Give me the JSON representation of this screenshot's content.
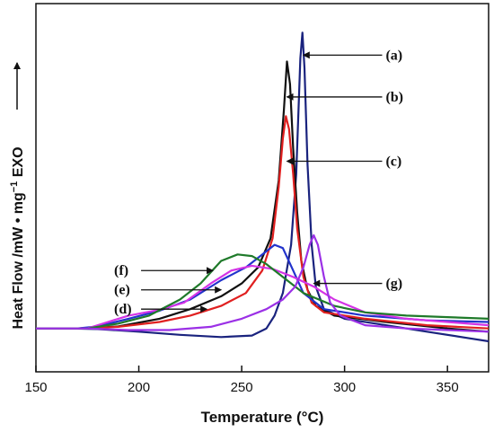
{
  "chart_data": {
    "type": "line",
    "title": "",
    "xlabel": "Temperature (°C)",
    "ylabel": "Heat Flow /mW • mg",
    "ylabel_superscript": "−1",
    "ylabel_suffix": " EXO",
    "xlim": [
      150,
      370
    ],
    "xticks": [
      150,
      200,
      250,
      300,
      350
    ],
    "ylim": [
      0,
      100
    ],
    "grid": false,
    "legend": "none",
    "series": [
      {
        "name": "(a)",
        "color": "#1a237e",
        "points": [
          [
            150,
            4
          ],
          [
            165,
            4
          ],
          [
            180,
            3.8
          ],
          [
            200,
            3
          ],
          [
            220,
            2
          ],
          [
            240,
            1.3
          ],
          [
            255,
            1.8
          ],
          [
            262,
            4
          ],
          [
            266,
            8
          ],
          [
            270,
            15
          ],
          [
            274,
            30
          ],
          [
            276.5,
            52
          ],
          [
            278.5,
            88
          ],
          [
            279.5,
            96
          ],
          [
            280.5,
            85
          ],
          [
            282,
            55
          ],
          [
            284,
            30
          ],
          [
            286,
            17
          ],
          [
            290,
            10
          ],
          [
            300,
            7
          ],
          [
            320,
            5
          ],
          [
            340,
            3
          ],
          [
            360,
            1
          ],
          [
            370,
            0
          ]
        ]
      },
      {
        "name": "(b)",
        "color": "#111111",
        "points": [
          [
            150,
            4
          ],
          [
            170,
            4
          ],
          [
            190,
            4.6
          ],
          [
            210,
            7
          ],
          [
            225,
            10
          ],
          [
            240,
            14
          ],
          [
            250,
            18
          ],
          [
            258,
            23
          ],
          [
            264,
            32
          ],
          [
            268,
            50
          ],
          [
            270.5,
            72
          ],
          [
            272,
            87
          ],
          [
            273.5,
            80
          ],
          [
            275,
            60
          ],
          [
            277,
            40
          ],
          [
            279,
            25
          ],
          [
            282,
            16
          ],
          [
            286,
            11
          ],
          [
            295,
            8
          ],
          [
            320,
            6
          ],
          [
            350,
            4
          ],
          [
            370,
            3
          ]
        ]
      },
      {
        "name": "(c)",
        "color": "#e02020",
        "points": [
          [
            150,
            4
          ],
          [
            170,
            4
          ],
          [
            190,
            4.5
          ],
          [
            210,
            6
          ],
          [
            225,
            8
          ],
          [
            240,
            11
          ],
          [
            252,
            15
          ],
          [
            260,
            22
          ],
          [
            265,
            32
          ],
          [
            268,
            48
          ],
          [
            270,
            63
          ],
          [
            271.5,
            70
          ],
          [
            273,
            66
          ],
          [
            275,
            52
          ],
          [
            277,
            35
          ],
          [
            280,
            20
          ],
          [
            284,
            12
          ],
          [
            290,
            9
          ],
          [
            310,
            7
          ],
          [
            340,
            5
          ],
          [
            370,
            4
          ]
        ]
      },
      {
        "name": "(d)",
        "color": "#2233cc",
        "points": [
          [
            150,
            4
          ],
          [
            170,
            4
          ],
          [
            180,
            4.6
          ],
          [
            195,
            7
          ],
          [
            210,
            9.5
          ],
          [
            225,
            13
          ],
          [
            240,
            19
          ],
          [
            252,
            23
          ],
          [
            262,
            28
          ],
          [
            266,
            30
          ],
          [
            270,
            29
          ],
          [
            275,
            22
          ],
          [
            280,
            15
          ],
          [
            290,
            10
          ],
          [
            310,
            8
          ],
          [
            340,
            6.5
          ],
          [
            370,
            6
          ]
        ]
      },
      {
        "name": "(e)",
        "color": "#d433e6",
        "points": [
          [
            150,
            4
          ],
          [
            175,
            4
          ],
          [
            185,
            6
          ],
          [
            195,
            8
          ],
          [
            210,
            9.8
          ],
          [
            222,
            12
          ],
          [
            235,
            18
          ],
          [
            245,
            22
          ],
          [
            255,
            23.5
          ],
          [
            265,
            22.5
          ],
          [
            275,
            20
          ],
          [
            285,
            17
          ],
          [
            295,
            13
          ],
          [
            310,
            9
          ],
          [
            330,
            7
          ],
          [
            350,
            6
          ],
          [
            370,
            5
          ]
        ]
      },
      {
        "name": "(f)",
        "color": "#1f7a2a",
        "points": [
          [
            150,
            4
          ],
          [
            175,
            4
          ],
          [
            190,
            5.5
          ],
          [
            205,
            8
          ],
          [
            220,
            13
          ],
          [
            230,
            18
          ],
          [
            240,
            25
          ],
          [
            248,
            27
          ],
          [
            255,
            26.5
          ],
          [
            262,
            24
          ],
          [
            270,
            20
          ],
          [
            280,
            15
          ],
          [
            295,
            11
          ],
          [
            310,
            9
          ],
          [
            330,
            8
          ],
          [
            350,
            7.5
          ],
          [
            370,
            7
          ]
        ]
      },
      {
        "name": "(g)",
        "color": "#9b30e6",
        "points": [
          [
            150,
            4
          ],
          [
            175,
            4
          ],
          [
            195,
            3.5
          ],
          [
            215,
            3.5
          ],
          [
            235,
            4.5
          ],
          [
            250,
            7
          ],
          [
            262,
            10
          ],
          [
            270,
            13
          ],
          [
            276,
            17
          ],
          [
            280,
            23
          ],
          [
            283,
            30
          ],
          [
            285,
            33
          ],
          [
            287,
            30
          ],
          [
            290,
            20
          ],
          [
            293,
            12
          ],
          [
            298,
            8
          ],
          [
            310,
            5
          ],
          [
            330,
            4
          ],
          [
            350,
            3.5
          ],
          [
            370,
            3
          ]
        ]
      }
    ],
    "annotations": [
      {
        "label": "(a)",
        "x": 280,
        "y": 89,
        "text_x": 320,
        "text_y": 89
      },
      {
        "label": "(b)",
        "x": 272,
        "y": 76,
        "text_x": 320,
        "text_y": 76
      },
      {
        "label": "(c)",
        "x": 272,
        "y": 56,
        "text_x": 320,
        "text_y": 56
      },
      {
        "label": "(g)",
        "x": 285,
        "y": 18,
        "text_x": 320,
        "text_y": 18
      },
      {
        "label": "(f)",
        "x": 236,
        "y": 22,
        "text_x": 188,
        "text_y": 22
      },
      {
        "label": "(e)",
        "x": 240,
        "y": 16,
        "text_x": 188,
        "text_y": 16
      },
      {
        "label": "(d)",
        "x": 233,
        "y": 10,
        "text_x": 188,
        "text_y": 10
      }
    ]
  }
}
